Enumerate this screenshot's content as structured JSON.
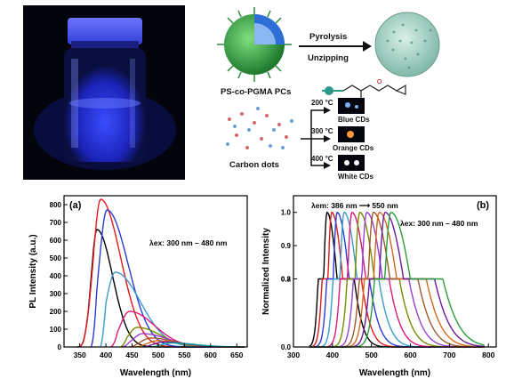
{
  "figure": {
    "photo": {
      "description_icon": "vial-photo"
    },
    "scheme": {
      "pc_label": "PS-co-PGMA PCs",
      "step1": "Pyrolysis",
      "step2": "Unzipping",
      "dots_label": "Carbon dots",
      "branches": [
        {
          "temp": "200 °C",
          "product": "Blue CDs"
        },
        {
          "temp": "300 °C",
          "product": "Orange CDs"
        },
        {
          "temp": "400 °C",
          "product": "White CDs"
        }
      ]
    }
  },
  "chart_data": [
    {
      "type": "line",
      "panel_label": "(a)",
      "title": "",
      "xlabel": "Wavelength (nm)",
      "ylabel": "PL Intensity (a.u.)",
      "xlim": [
        320,
        670
      ],
      "ylim": [
        0,
        850
      ],
      "xticks": [
        350,
        400,
        450,
        500,
        550,
        600,
        650
      ],
      "yticks": [
        0,
        100,
        200,
        300,
        400,
        500,
        600,
        700,
        800
      ],
      "annotation": "λex: 300 nm – 480 nm",
      "grid": false,
      "series": [
        {
          "color": "#000000",
          "peak": 383,
          "height": 660,
          "start": 345,
          "width": 28
        },
        {
          "color": "#e41a1c",
          "peak": 390,
          "height": 830,
          "start": 348,
          "width": 36
        },
        {
          "color": "#2b3bd6",
          "peak": 402,
          "height": 770,
          "start": 372,
          "width": 38
        },
        {
          "color": "#3a9bd0",
          "peak": 418,
          "height": 420,
          "start": 390,
          "width": 45
        },
        {
          "color": "#e0187a",
          "peak": 445,
          "height": 200,
          "start": 410,
          "width": 45
        },
        {
          "color": "#7a8a00",
          "peak": 460,
          "height": 110,
          "start": 428,
          "width": 42
        },
        {
          "color": "#9b3fd1",
          "peak": 470,
          "height": 75,
          "start": 430,
          "width": 45
        },
        {
          "color": "#a05a2c",
          "peak": 485,
          "height": 50,
          "start": 445,
          "width": 45
        },
        {
          "color": "#d2691e",
          "peak": 498,
          "height": 35,
          "start": 455,
          "width": 45
        },
        {
          "color": "#6a1b9a",
          "peak": 510,
          "height": 28,
          "start": 470,
          "width": 45
        },
        {
          "color": "#00a2a2",
          "peak": 525,
          "height": 22,
          "start": 485,
          "width": 45
        }
      ]
    },
    {
      "type": "line",
      "panel_label": "(b)",
      "title": "",
      "xlabel": "Wavelength (nm)",
      "ylabel": "Normalized Intensity",
      "xlim": [
        300,
        820
      ],
      "ylim": [
        0,
        1.05
      ],
      "xticks": [
        300,
        400,
        500,
        600,
        700,
        800
      ],
      "yticks": [
        0.0,
        0.2,
        0.8,
        0.9,
        1.0
      ],
      "annotation_top": "λem: 386 nm ⟶ 550 nm",
      "annotation_right": "λex: 300 nm – 480 nm",
      "grid": false,
      "series": [
        {
          "color": "#000000",
          "peak": 386
        },
        {
          "color": "#e41a1c",
          "peak": 398
        },
        {
          "color": "#2b3bd6",
          "peak": 412
        },
        {
          "color": "#3a9bd0",
          "peak": 430
        },
        {
          "color": "#e0187a",
          "peak": 450
        },
        {
          "color": "#7a8a00",
          "peak": 470
        },
        {
          "color": "#9b3fd1",
          "peak": 488
        },
        {
          "color": "#a05a2c",
          "peak": 505
        },
        {
          "color": "#d2691e",
          "peak": 520
        },
        {
          "color": "#6a1b9a",
          "peak": 535
        },
        {
          "color": "#2a9d3a",
          "peak": 550
        }
      ]
    }
  ]
}
